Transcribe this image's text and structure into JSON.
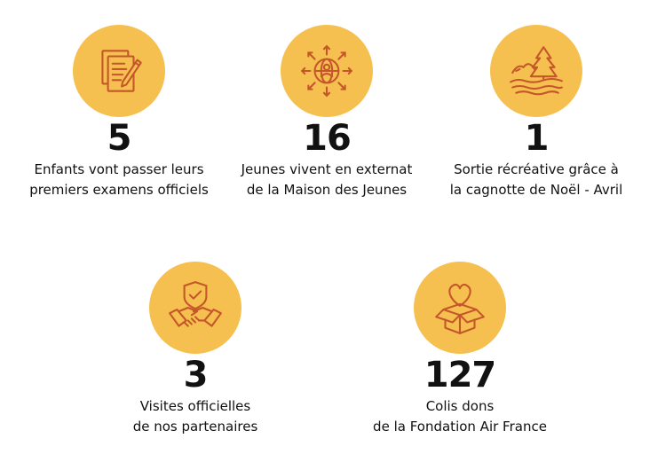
{
  "colors": {
    "circle": "#f5c04f",
    "icon_stroke": "#c4562a",
    "text": "#111111"
  },
  "stats": [
    {
      "icon": "documents-pen-icon",
      "number": "5",
      "line1": "Enfants vont passer leurs",
      "line2": "premiers examens officiels"
    },
    {
      "icon": "globe-person-arrows-icon",
      "number": "16",
      "line1": "Jeunes vivent en externat",
      "line2": "de la Maison des Jeunes"
    },
    {
      "icon": "landscape-tree-icon",
      "number": "1",
      "line1": "Sortie récréative grâce à",
      "line2": "la cagnotte de Noël - Avril"
    },
    {
      "icon": "handshake-shield-icon",
      "number": "3",
      "line1": "Visites officielles",
      "line2": "de nos partenaires"
    },
    {
      "icon": "heart-box-icon",
      "number": "127",
      "line1": "Colis dons",
      "line2": "de la Fondation Air France"
    }
  ]
}
